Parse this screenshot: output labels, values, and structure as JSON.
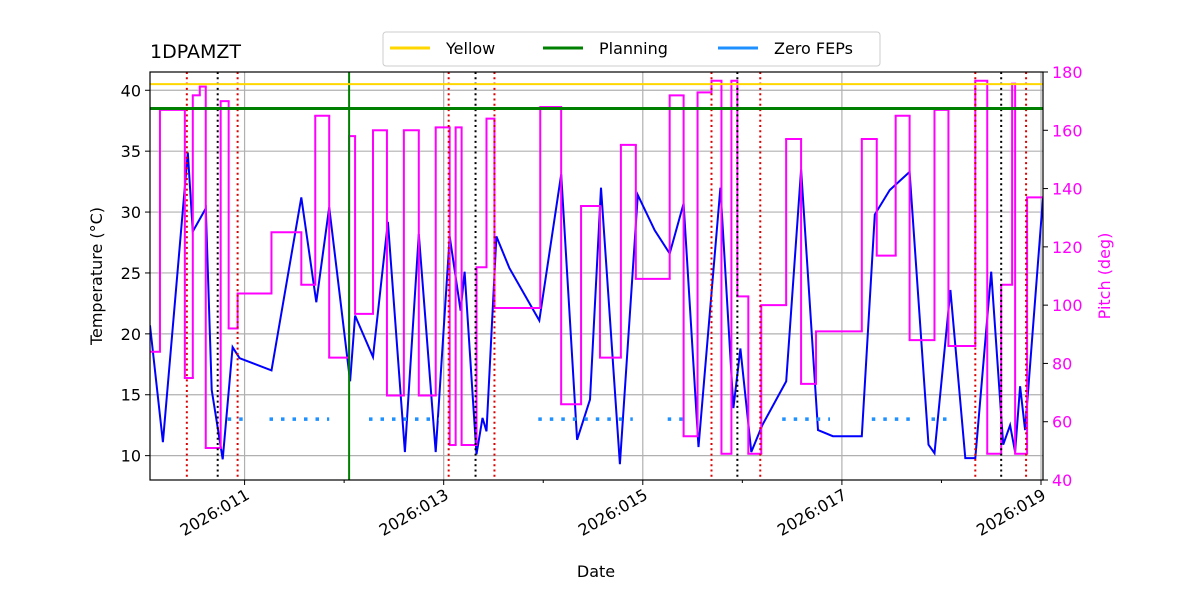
{
  "chart_data": {
    "type": "line",
    "title": "1DPAMZT",
    "xlabel": "Date",
    "ylabel": "Temperature (°C)",
    "y2label": "Pitch (deg)",
    "y2color": "#ff00ff",
    "xlim": [
      10.05,
      19.02
    ],
    "xticks": [
      {
        "value": 11,
        "label": "2026:011"
      },
      {
        "value": 13,
        "label": "2026:013"
      },
      {
        "value": 15,
        "label": "2026:015"
      },
      {
        "value": 17,
        "label": "2026:017"
      },
      {
        "value": 19,
        "label": "2026:019"
      }
    ],
    "xminorticks": [
      12,
      14,
      16,
      18
    ],
    "ylim": [
      8.0,
      41.5
    ],
    "yticks": [
      10,
      15,
      20,
      25,
      30,
      35,
      40
    ],
    "y2lim": [
      40,
      180
    ],
    "y2ticks": [
      40,
      60,
      80,
      100,
      120,
      140,
      160,
      180
    ],
    "grid": true,
    "legend": "upper center",
    "series": [
      {
        "name": "Yellow",
        "color": "#ffd700",
        "value": 40.5
      },
      {
        "name": "Planning",
        "color": "#008000",
        "value": 38.5
      },
      {
        "name": "Zero FEPs",
        "color": "#1e90ff",
        "x": [
          10.83,
          10.99,
          null,
          11.25,
          11.85,
          null,
          12.25,
          12.95,
          null,
          13.95,
          14.9,
          null,
          15.25,
          15.45,
          null,
          16.4,
          16.88,
          null,
          17.3,
          17.7,
          null,
          17.9,
          18.1
        ],
        "values": [
          13,
          13,
          null,
          13,
          13,
          null,
          13,
          13,
          null,
          13,
          13,
          null,
          13,
          13,
          null,
          13,
          13,
          null,
          13,
          13,
          null,
          13,
          13
        ]
      }
    ],
    "temperature": {
      "color": "#0000ff",
      "x": [
        10.05,
        10.18,
        10.43,
        10.48,
        10.61,
        10.67,
        10.78,
        10.88,
        10.95,
        11.27,
        11.57,
        11.72,
        11.85,
        12.06,
        12.11,
        12.29,
        12.44,
        12.61,
        12.75,
        12.92,
        13.06,
        13.17,
        13.21,
        13.33,
        13.39,
        13.43,
        13.53,
        13.66,
        13.96,
        14.18,
        14.34,
        14.47,
        14.58,
        14.77,
        14.95,
        15.12,
        15.27,
        15.41,
        15.56,
        15.78,
        15.91,
        15.98,
        16.09,
        16.2,
        16.44,
        16.59,
        16.76,
        16.91,
        17.2,
        17.33,
        17.48,
        17.68,
        17.87,
        17.93,
        18.09,
        18.24,
        18.34,
        18.5,
        18.62,
        18.69,
        18.74,
        18.79,
        18.84,
        19.02
      ],
      "values": [
        20.7,
        11.1,
        34.9,
        28.4,
        30.3,
        15.4,
        9.7,
        18.9,
        18.0,
        17.0,
        31.2,
        22.6,
        30.4,
        16.1,
        21.5,
        18.1,
        29.2,
        10.3,
        28.2,
        10.3,
        28.0,
        21.9,
        25.1,
        10.1,
        13.1,
        12.0,
        28.0,
        25.4,
        21.1,
        33.1,
        11.3,
        14.6,
        32.0,
        9.3,
        31.4,
        28.5,
        26.6,
        30.7,
        10.7,
        32.0,
        13.9,
        18.8,
        10.3,
        12.5,
        16.1,
        33.5,
        12.1,
        11.6,
        11.6,
        29.8,
        31.8,
        33.3,
        10.9,
        10.2,
        23.6,
        9.8,
        9.8,
        25.1,
        10.9,
        12.5,
        10.3,
        15.7,
        12.1,
        31.2
      ]
    },
    "pitch": {
      "color": "#ff00ff",
      "axis": "y2",
      "drawstyle": "steps-post",
      "x": [
        10.05,
        10.15,
        10.4,
        10.48,
        10.55,
        10.61,
        10.76,
        10.84,
        10.93,
        11.27,
        11.57,
        11.71,
        11.85,
        12.05,
        12.11,
        12.29,
        12.43,
        12.6,
        12.75,
        12.92,
        13.06,
        13.12,
        13.18,
        13.33,
        13.43,
        13.51,
        13.97,
        14.18,
        14.38,
        14.57,
        14.78,
        14.93,
        15.27,
        15.41,
        15.55,
        15.69,
        15.79,
        15.89,
        15.95,
        16.06,
        16.19,
        16.44,
        16.59,
        16.74,
        17.2,
        17.35,
        17.54,
        17.68,
        17.93,
        18.07,
        18.34,
        18.46,
        18.6,
        18.71,
        18.74,
        18.86,
        19.02
      ],
      "values": [
        84,
        167,
        75,
        172,
        175,
        51,
        170,
        92,
        104,
        125,
        107,
        165,
        82,
        158,
        97,
        160,
        69,
        160,
        69,
        161,
        52,
        161,
        52,
        113,
        164,
        99,
        168,
        66,
        134,
        82,
        155,
        109,
        172,
        55,
        173,
        177,
        49,
        177,
        103,
        49,
        100,
        157,
        73,
        91,
        157,
        117,
        165,
        88,
        167,
        86,
        177,
        49,
        107,
        176,
        49,
        137,
        137
      ]
    },
    "vlines": [
      {
        "color": "#008000",
        "style": "solid",
        "x": [
          12.05
        ]
      },
      {
        "color": "#000000",
        "style": "dotted",
        "x": [
          10.73,
          13.32,
          15.95,
          18.6
        ]
      },
      {
        "color": "#dd0000",
        "style": "dotted",
        "x": [
          10.42,
          10.93,
          13.05,
          13.51,
          15.69,
          16.18,
          18.34,
          18.85
        ]
      }
    ]
  }
}
